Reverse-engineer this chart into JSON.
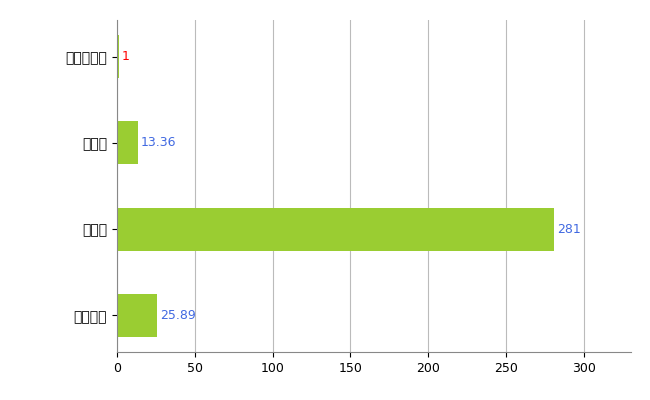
{
  "categories": [
    "上富良野町",
    "県平均",
    "県最大",
    "全国平均"
  ],
  "values": [
    1,
    13.36,
    281,
    25.89
  ],
  "bar_color": "#9ACD32",
  "label_color_normal": "#4169E1",
  "label_color_red": "#FF0000",
  "value_labels": [
    "1",
    "13.36",
    "281",
    "25.89"
  ],
  "red_label_index": 0,
  "xlim": [
    0,
    330
  ],
  "xticks": [
    0,
    50,
    100,
    150,
    200,
    250,
    300
  ],
  "grid_color": "#bbbbbb",
  "background_color": "#ffffff",
  "bar_height": 0.5,
  "figsize": [
    6.5,
    4.0
  ],
  "dpi": 100
}
